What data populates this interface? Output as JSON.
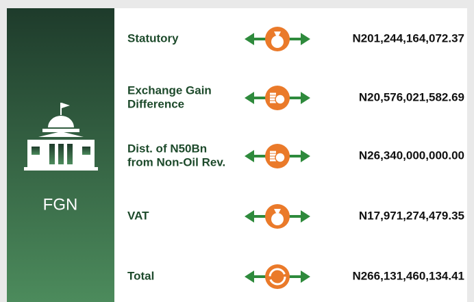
{
  "sidebar": {
    "label": "FGN"
  },
  "rows": [
    {
      "label": [
        "Statutory"
      ],
      "amount": "N201,244,164,072.37",
      "icon": "bag"
    },
    {
      "label": [
        "Exchange Gain",
        "Difference"
      ],
      "amount": "N20,576,021,582.69",
      "icon": "coins"
    },
    {
      "label": [
        "Dist. of N50Bn",
        "from Non-Oil Rev."
      ],
      "amount": "N26,340,000,000.00",
      "icon": "coins"
    },
    {
      "label": [
        "VAT"
      ],
      "amount": "N17,971,274,479.35",
      "icon": "bag"
    },
    {
      "label": [
        "Total"
      ],
      "amount": "N266,131,460,134.41",
      "icon": "cycle"
    }
  ]
}
